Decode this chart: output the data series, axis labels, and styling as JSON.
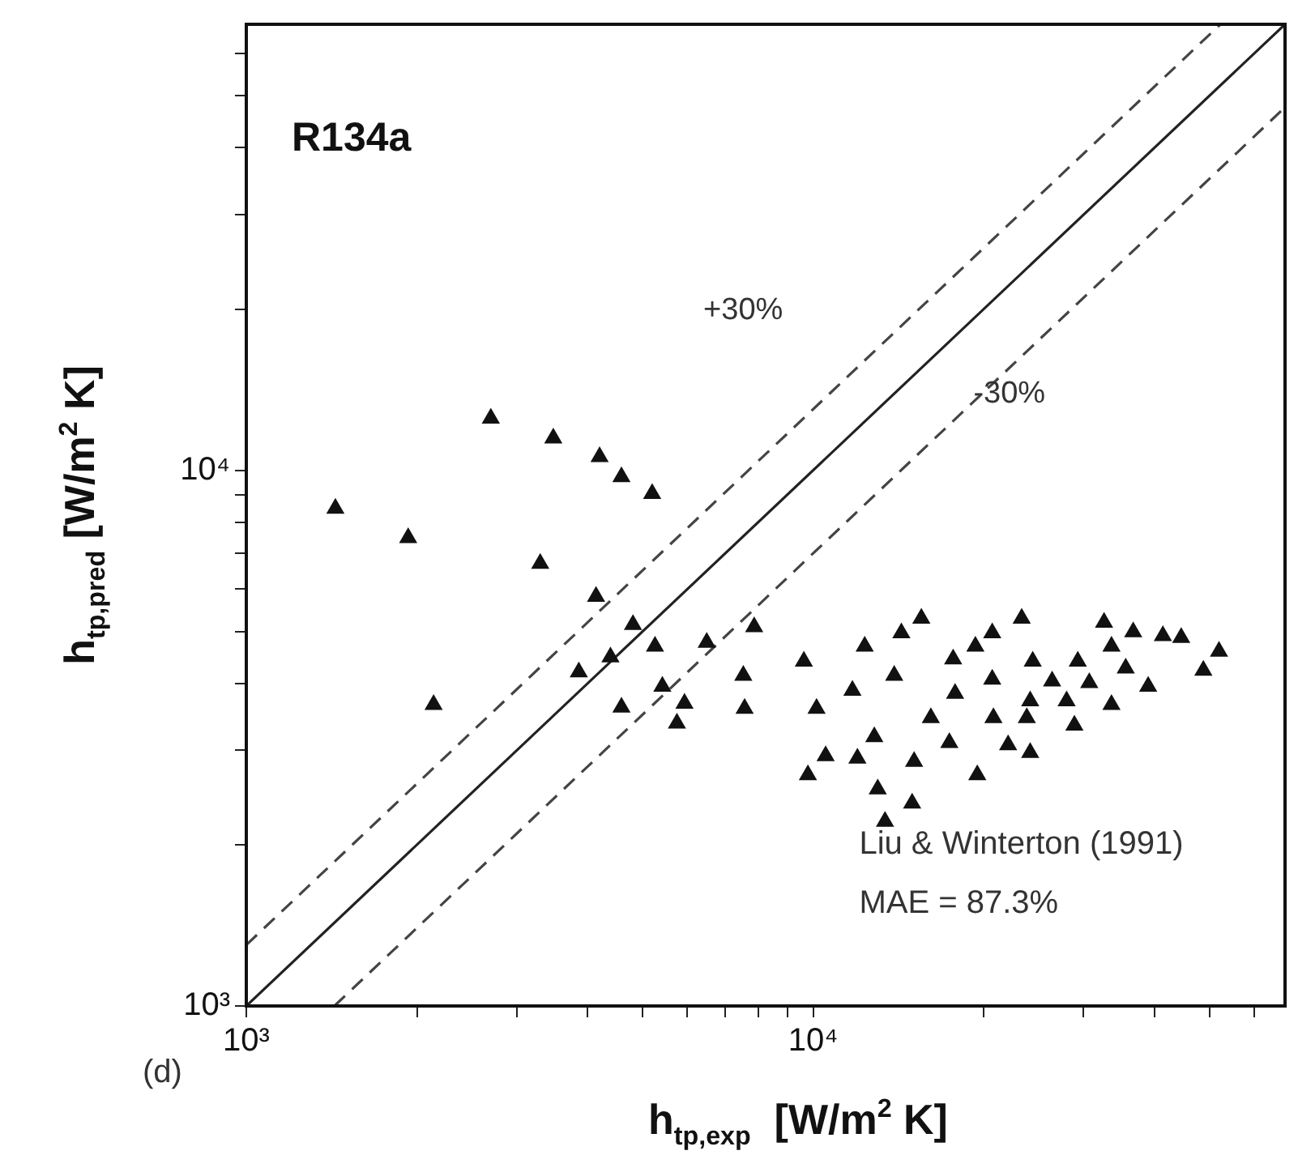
{
  "chart_data": {
    "type": "scatter",
    "title": "R134a",
    "xlabel": "h$_{tp,exp}$  [W/m$^{2}$ K]",
    "ylabel": "h$_{tp,pred}$ [W/m$^{2}$ K]",
    "log": "xy",
    "grid": false,
    "legend": false,
    "xlim": [
      1000,
      68000
    ],
    "ylim": [
      1000,
      68000
    ],
    "xticks": [
      {
        "value": 1000,
        "label": "10³"
      },
      {
        "value": 2000,
        "label": null
      },
      {
        "value": 3000,
        "label": null
      },
      {
        "value": 4000,
        "label": null
      },
      {
        "value": 5000,
        "label": null
      },
      {
        "value": 6000,
        "label": null
      },
      {
        "value": 7000,
        "label": null
      },
      {
        "value": 8000,
        "label": null
      },
      {
        "value": 9000,
        "label": null
      },
      {
        "value": 10000,
        "label": "10⁴"
      },
      {
        "value": 20000,
        "label": null
      },
      {
        "value": 30000,
        "label": null
      },
      {
        "value": 40000,
        "label": null
      },
      {
        "value": 50000,
        "label": null
      },
      {
        "value": 60000,
        "label": null
      }
    ],
    "yticks": [
      {
        "value": 1000,
        "label": "10³"
      },
      {
        "value": 2000,
        "label": null
      },
      {
        "value": 3000,
        "label": null
      },
      {
        "value": 4000,
        "label": null
      },
      {
        "value": 5000,
        "label": null
      },
      {
        "value": 6000,
        "label": null
      },
      {
        "value": 7000,
        "label": null
      },
      {
        "value": 8000,
        "label": null
      },
      {
        "value": 9000,
        "label": null
      },
      {
        "value": 10000,
        "label": "10⁴"
      },
      {
        "value": 20000,
        "label": null
      },
      {
        "value": 30000,
        "label": null
      },
      {
        "value": 40000,
        "label": null
      },
      {
        "value": 50000,
        "label": null
      },
      {
        "value": 60000,
        "label": null
      }
    ],
    "series": [
      {
        "color": "#111111",
        "marker": "triangle",
        "x": [
          1436,
          1930,
          2700,
          3480,
          4200,
          4590,
          5200,
          3300,
          4140,
          2140,
          4810,
          5260,
          4390,
          3860,
          6490,
          7870,
          4590,
          5420,
          5930,
          5750,
          7530,
          7570,
          9630,
          10140,
          9790,
          10520,
          11730,
          12330,
          11970,
          12820,
          13900,
          14310,
          15520,
          13000,
          14950,
          13390,
          15070,
          16130,
          17390,
          17800,
          17660,
          19330,
          20700,
          23330,
          19480,
          20800,
          20700,
          24150,
          22080,
          23820,
          24400,
          26400,
          24150,
          28900,
          29300,
          32600,
          33600,
          33600,
          39000,
          36700,
          41400,
          44600,
          48800,
          52000,
          30700,
          35600,
          28000
        ],
        "values": [
          8490,
          7480,
          12500,
          11480,
          10600,
          9720,
          9040,
          6700,
          5810,
          3650,
          5150,
          4690,
          4480,
          4200,
          4770,
          5100,
          3610,
          3950,
          3670,
          3370,
          4140,
          3590,
          4400,
          3590,
          2700,
          2930,
          3880,
          4690,
          2900,
          3180,
          4140,
          4970,
          5290,
          2540,
          2390,
          2210,
          2860,
          3450,
          3100,
          3830,
          4440,
          4690,
          4970,
          5290,
          2700,
          3450,
          4070,
          2970,
          3070,
          3450,
          4400,
          4040,
          3710,
          3340,
          4400,
          5200,
          4690,
          3650,
          3950,
          4990,
          4910,
          4870,
          4230,
          4590,
          4010,
          4270,
          3710
        ]
      },
      {
        "type": "line",
        "color": "#222222",
        "line_style": "solid",
        "x": [
          1000,
          68000
        ],
        "values": [
          1000,
          68000
        ]
      },
      {
        "type": "line",
        "color": "#444444",
        "line_style": "dashed",
        "x": [
          1000,
          52300
        ],
        "values": [
          1300,
          68000
        ]
      },
      {
        "type": "line",
        "color": "#444444",
        "line_style": "dashed",
        "x": [
          1430,
          68000
        ],
        "values": [
          1000,
          47600
        ]
      }
    ],
    "annotations": [
      "+30%",
      "-30%",
      "Liu & Winterton (1991)",
      "MAE = 87.3%",
      "(d)"
    ]
  }
}
